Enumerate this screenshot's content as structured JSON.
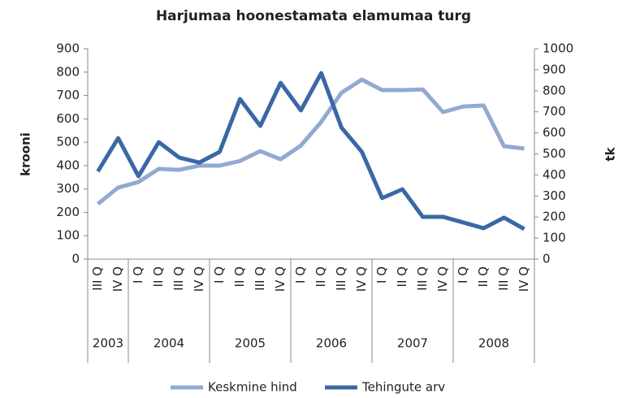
{
  "chart_data": {
    "type": "line",
    "title": "Harjumaa hoonestamata elamumaa turg",
    "y_label": "krooni",
    "y2_label": "tk",
    "categories": [
      "III Q",
      "IV Q",
      "I Q",
      "II Q",
      "III Q",
      "IV Q",
      "I Q",
      "II Q",
      "III Q",
      "IV Q",
      "I Q",
      "II Q",
      "III Q",
      "IV Q",
      "I Q",
      "II Q",
      "III Q",
      "IV Q",
      "I Q",
      "II Q",
      "III Q",
      "IV Q"
    ],
    "groups": [
      {
        "label": "2003",
        "count": 2
      },
      {
        "label": "2004",
        "count": 4
      },
      {
        "label": "2005",
        "count": 4
      },
      {
        "label": "2006",
        "count": 4
      },
      {
        "label": "2007",
        "count": 4
      },
      {
        "label": "2008",
        "count": 4
      }
    ],
    "series": [
      {
        "name": "Keskmine hind",
        "color": "#93a9d1",
        "axis": "y",
        "values": [
          236,
          306,
          330,
          386,
          382,
          400,
          400,
          420,
          462,
          427,
          486,
          587,
          712,
          768,
          723,
          723,
          726,
          629,
          653,
          657,
          483,
          473
        ]
      },
      {
        "name": "Tehingute arv",
        "color": "#3a68a5",
        "axis": "y2",
        "values": [
          417,
          575,
          394,
          556,
          483,
          459,
          510,
          761,
          633,
          838,
          707,
          884,
          625,
          510,
          290,
          332,
          201,
          201,
          174,
          147,
          197,
          143
        ]
      }
    ],
    "ylim": [
      0,
      900
    ],
    "yticks": [
      0,
      100,
      200,
      300,
      400,
      500,
      600,
      700,
      800,
      900
    ],
    "y2lim": [
      0,
      1000
    ],
    "y2ticks": [
      0,
      100,
      200,
      300,
      400,
      500,
      600,
      700,
      800,
      900,
      1000
    ],
    "legend": "bottom"
  }
}
